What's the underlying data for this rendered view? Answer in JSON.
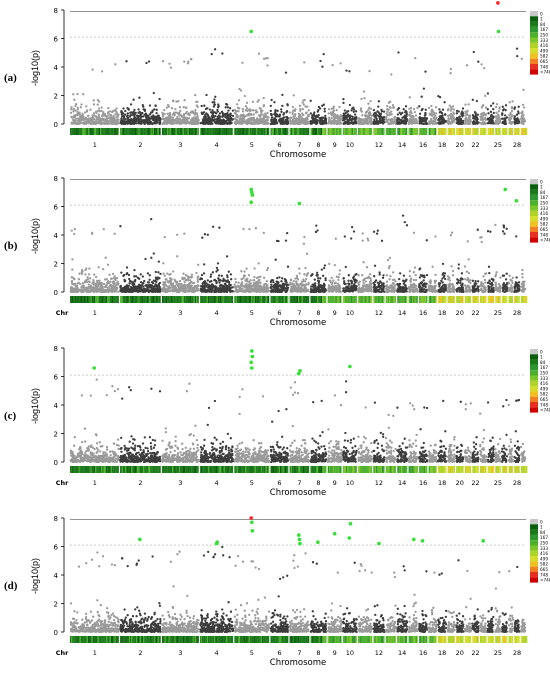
{
  "chart_data": [
    {
      "type": "scatter",
      "panel_label": "(a)",
      "ylabel": "-log10(p)",
      "xlabel": "Chromosome",
      "chr_label": "",
      "ylim": [
        0,
        8
      ],
      "y_ticks": [
        0,
        2,
        4,
        6,
        8
      ],
      "chromosomes": [
        "1",
        "2",
        "3",
        "4",
        "5",
        "6",
        "7",
        "8",
        "9",
        "10",
        "11",
        "12",
        "13",
        "14",
        "15",
        "16",
        "17",
        "18",
        "19",
        "20",
        "21",
        "22",
        "23",
        "24",
        "25",
        "26",
        "27",
        "28",
        "29"
      ],
      "chromosome_tick_labels": [
        "1",
        "2",
        "3",
        "4",
        "5",
        "6",
        "7",
        "8",
        "9",
        "10",
        "12",
        "14",
        "16",
        "18",
        "20",
        "22",
        "25",
        "28"
      ],
      "baseline_peak": [
        4.4,
        5.2,
        4.6,
        6.1,
        5.0,
        4.2,
        4.4,
        5.0,
        4.6,
        4.6,
        4.2,
        5.8,
        4.4,
        5.2,
        5.0,
        4.4,
        4.6,
        5.0,
        4.4,
        5.2,
        4.6,
        5.4,
        4.6,
        5.0,
        4.8,
        5.4,
        4.6,
        5.4,
        4.6
      ],
      "significant_points": [
        {
          "chr": "5",
          "y": 6.5,
          "color": "#33e033"
        },
        {
          "chr": "25",
          "y": 8.5,
          "color": "#ff2020"
        },
        {
          "chr": "25",
          "y": 6.5,
          "color": "#33e033"
        }
      ],
      "genomewide_threshold": 7.9,
      "suggestive_threshold": 6.1,
      "density_legend": [
        "0",
        "1",
        "84",
        "167",
        "250",
        "333",
        "416",
        "499",
        "582",
        "665",
        "748",
        ">748"
      ]
    },
    {
      "type": "scatter",
      "panel_label": "(b)",
      "ylabel": "-log10(p)",
      "xlabel": "Chromosome",
      "chr_label": "Chr",
      "ylim": [
        0,
        8
      ],
      "y_ticks": [
        0,
        2,
        4,
        6,
        8
      ],
      "chromosomes": [
        "1",
        "2",
        "3",
        "4",
        "5",
        "6",
        "7",
        "8",
        "9",
        "10",
        "11",
        "12",
        "13",
        "14",
        "15",
        "16",
        "17",
        "18",
        "19",
        "20",
        "21",
        "22",
        "23",
        "24",
        "25",
        "26",
        "27",
        "28",
        "29"
      ],
      "chromosome_tick_labels": [
        "1",
        "2",
        "3",
        "4",
        "5",
        "6",
        "7",
        "8",
        "9",
        "10",
        "12",
        "14",
        "16",
        "18",
        "20",
        "22",
        "25",
        "28"
      ],
      "baseline_peak": [
        5.0,
        5.4,
        4.6,
        4.6,
        5.0,
        4.4,
        4.2,
        5.2,
        4.2,
        4.6,
        4.2,
        4.4,
        4.0,
        5.5,
        4.6,
        4.4,
        4.2,
        4.4,
        4.6,
        5.8,
        4.2,
        4.4,
        4.2,
        4.6,
        4.8,
        5.0,
        4.4,
        4.6,
        4.2
      ],
      "significant_points": [
        {
          "chr": "5",
          "y": 7.2,
          "color": "#33e033"
        },
        {
          "chr": "5",
          "y": 7.0,
          "color": "#33e033"
        },
        {
          "chr": "5",
          "y": 6.8,
          "color": "#33e033"
        },
        {
          "chr": "5",
          "y": 6.3,
          "color": "#33e033"
        },
        {
          "chr": "7",
          "y": 6.2,
          "color": "#33e033"
        },
        {
          "chr": "26",
          "y": 7.2,
          "color": "#33e033"
        },
        {
          "chr": "28",
          "y": 6.4,
          "color": "#33e033"
        }
      ],
      "genomewide_threshold": 7.9,
      "suggestive_threshold": 6.1,
      "density_legend": [
        "0",
        "1",
        "84",
        "167",
        "250",
        "333",
        "416",
        "499",
        "582",
        "665",
        "748",
        ">748"
      ]
    },
    {
      "type": "scatter",
      "panel_label": "(c)",
      "ylabel": "-log10(p)",
      "xlabel": "Chromosome",
      "chr_label": "Chr",
      "ylim": [
        0,
        8
      ],
      "y_ticks": [
        0,
        2,
        4,
        6,
        8
      ],
      "chromosomes": [
        "1",
        "2",
        "3",
        "4",
        "5",
        "6",
        "7",
        "8",
        "9",
        "10",
        "11",
        "12",
        "13",
        "14",
        "15",
        "16",
        "17",
        "18",
        "19",
        "20",
        "21",
        "22",
        "23",
        "24",
        "25",
        "26",
        "27",
        "28",
        "29"
      ],
      "chromosome_tick_labels": [
        "1",
        "2",
        "3",
        "4",
        "5",
        "6",
        "7",
        "8",
        "9",
        "10",
        "12",
        "14",
        "16",
        "18",
        "20",
        "22",
        "25",
        "28"
      ],
      "baseline_peak": [
        5.8,
        5.4,
        5.8,
        4.6,
        5.4,
        4.2,
        5.8,
        5.0,
        4.8,
        5.8,
        4.2,
        4.6,
        4.0,
        4.4,
        4.2,
        4.2,
        4.4,
        4.6,
        4.2,
        4.8,
        4.4,
        4.4,
        4.0,
        4.6,
        4.4,
        4.8,
        4.4,
        4.8,
        4.4
      ],
      "significant_points": [
        {
          "chr": "1",
          "y": 6.6,
          "color": "#33e033"
        },
        {
          "chr": "5",
          "y": 7.8,
          "color": "#33e033"
        },
        {
          "chr": "5",
          "y": 7.4,
          "color": "#33e033"
        },
        {
          "chr": "5",
          "y": 7.0,
          "color": "#33e033"
        },
        {
          "chr": "5",
          "y": 6.6,
          "color": "#33e033"
        },
        {
          "chr": "7",
          "y": 6.4,
          "color": "#33e033"
        },
        {
          "chr": "7",
          "y": 6.2,
          "color": "#33e033"
        },
        {
          "chr": "10",
          "y": 6.7,
          "color": "#33e033"
        }
      ],
      "genomewide_threshold": null,
      "suggestive_threshold": 6.1,
      "density_legend": [
        "0",
        "1",
        "84",
        "167",
        "250",
        "333",
        "416",
        "499",
        "582",
        "665",
        "748",
        ">748"
      ]
    },
    {
      "type": "scatter",
      "panel_label": "(d)",
      "ylabel": "-log10(p)",
      "xlabel": "Chromosome",
      "chr_label": "Chr",
      "ylim": [
        0,
        8
      ],
      "y_ticks": [
        0,
        2,
        4,
        6,
        8
      ],
      "chromosomes": [
        "1",
        "2",
        "3",
        "4",
        "5",
        "6",
        "7",
        "8",
        "9",
        "10",
        "11",
        "12",
        "13",
        "14",
        "15",
        "16",
        "17",
        "18",
        "19",
        "20",
        "21",
        "22",
        "23",
        "24",
        "25",
        "26",
        "27",
        "28",
        "29"
      ],
      "chromosome_tick_labels": [
        "1",
        "2",
        "3",
        "4",
        "5",
        "6",
        "7",
        "8",
        "9",
        "10",
        "12",
        "14",
        "16",
        "18",
        "20",
        "22",
        "25",
        "28"
      ],
      "baseline_peak": [
        5.6,
        5.6,
        5.8,
        6.0,
        5.4,
        4.6,
        5.6,
        5.2,
        5.0,
        5.6,
        4.8,
        5.0,
        4.4,
        5.4,
        5.0,
        4.8,
        4.8,
        4.8,
        4.8,
        5.2,
        4.6,
        4.8,
        4.6,
        4.8,
        4.8,
        5.0,
        4.6,
        5.0,
        4.6
      ],
      "significant_points": [
        {
          "chr": "2",
          "y": 6.5,
          "color": "#33e033"
        },
        {
          "chr": "4",
          "y": 6.2,
          "color": "#33e033"
        },
        {
          "chr": "4",
          "y": 6.3,
          "color": "#33e033"
        },
        {
          "chr": "5",
          "y": 8.0,
          "color": "#ff2020"
        },
        {
          "chr": "5",
          "y": 7.7,
          "color": "#33e033"
        },
        {
          "chr": "5",
          "y": 7.1,
          "color": "#33e033"
        },
        {
          "chr": "7",
          "y": 6.8,
          "color": "#33e033"
        },
        {
          "chr": "7",
          "y": 6.5,
          "color": "#33e033"
        },
        {
          "chr": "7",
          "y": 6.2,
          "color": "#33e033"
        },
        {
          "chr": "8",
          "y": 6.3,
          "color": "#33e033"
        },
        {
          "chr": "9",
          "y": 6.9,
          "color": "#33e033"
        },
        {
          "chr": "10",
          "y": 7.6,
          "color": "#33e033"
        },
        {
          "chr": "10",
          "y": 6.6,
          "color": "#33e033"
        },
        {
          "chr": "12",
          "y": 6.2,
          "color": "#33e033"
        },
        {
          "chr": "15",
          "y": 6.5,
          "color": "#33e033"
        },
        {
          "chr": "16",
          "y": 6.4,
          "color": "#33e033"
        },
        {
          "chr": "23",
          "y": 6.4,
          "color": "#33e033"
        }
      ],
      "genomewide_threshold": 7.9,
      "suggestive_threshold": 6.1,
      "density_legend": [
        "0",
        "1",
        "84",
        "167",
        "250",
        "333",
        "416",
        "499",
        "582",
        "665",
        "748",
        ">748"
      ]
    }
  ],
  "colors": {
    "odd_chromosome": "#9a9a9a",
    "even_chromosome": "#3c3c3c",
    "significant": "#33e033",
    "top_hit": "#ff2020",
    "density_scale": [
      "#c8c8c8",
      "#0a5f0a",
      "#1a7a1a",
      "#2e962e",
      "#4cb02c",
      "#7cc52a",
      "#aed42a",
      "#d6dc2c",
      "#f0c020",
      "#f08020",
      "#e83020",
      "#d00000"
    ]
  }
}
